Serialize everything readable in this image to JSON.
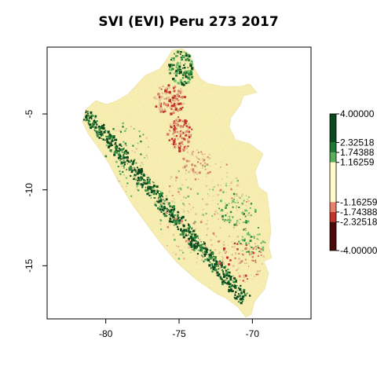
{
  "title": "SVI (EVI) Peru 273 2017",
  "map": {
    "x_ticks": [
      "-80",
      "-75",
      "-70"
    ],
    "y_ticks": [
      "-5",
      "-10",
      "-15"
    ],
    "xlim": [
      -84,
      -66
    ],
    "ylim": [
      -18.5,
      -0.6
    ],
    "x_tick_values": [
      -80,
      -75,
      -70
    ],
    "y_tick_values": [
      -5,
      -10,
      -15
    ]
  },
  "legend": {
    "labels": [
      "4.00000",
      "2.32518",
      "1.74388",
      "1.16259",
      "-1.16259",
      "-1.74388",
      "-2.32518",
      "-4.00000"
    ],
    "classes": [
      {
        "range": [
          2.32518,
          4.0
        ],
        "color": "#0b4a1f"
      },
      {
        "range": [
          1.74388,
          2.32518
        ],
        "color": "#1e7b34"
      },
      {
        "range": [
          1.16259,
          1.74388
        ],
        "color": "#5aae5a"
      },
      {
        "range": [
          -1.16259,
          1.16259
        ],
        "color": "#fdfbc9"
      },
      {
        "range": [
          -1.74388,
          -1.16259
        ],
        "color": "#e8826b"
      },
      {
        "range": [
          -2.32518,
          -1.74388
        ],
        "color": "#c4332a"
      },
      {
        "range": [
          -4.0,
          -2.32518
        ],
        "color": "#4a0a0a"
      }
    ]
  },
  "colors": {
    "base": "#f7efb0",
    "coast_green": "#0b4a1f",
    "mid_green": "#2e8b3e",
    "light_green": "#6fbf6a",
    "tan": "#e5c39a",
    "salmon": "#d9826a",
    "red": "#c4332a"
  }
}
